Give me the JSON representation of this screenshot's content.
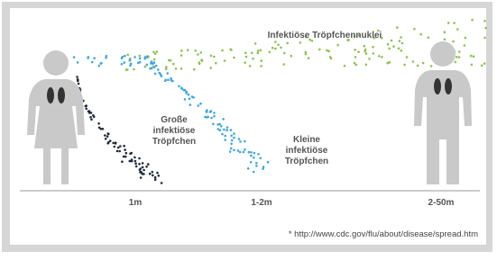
{
  "labels": {
    "nuclei": "Infektiöse Tröpfchennuklei",
    "large_droplets": [
      "Große",
      "infektiöse",
      "Tröpfchen"
    ],
    "small_droplets": [
      "Kleine",
      "infektiöse",
      "Tröpfchen"
    ]
  },
  "distances": [
    "1m",
    "1-2m",
    "2-50m"
  ],
  "footnote": "* http://www.cdc.gov/flu/about/disease/spread.htm"
}
